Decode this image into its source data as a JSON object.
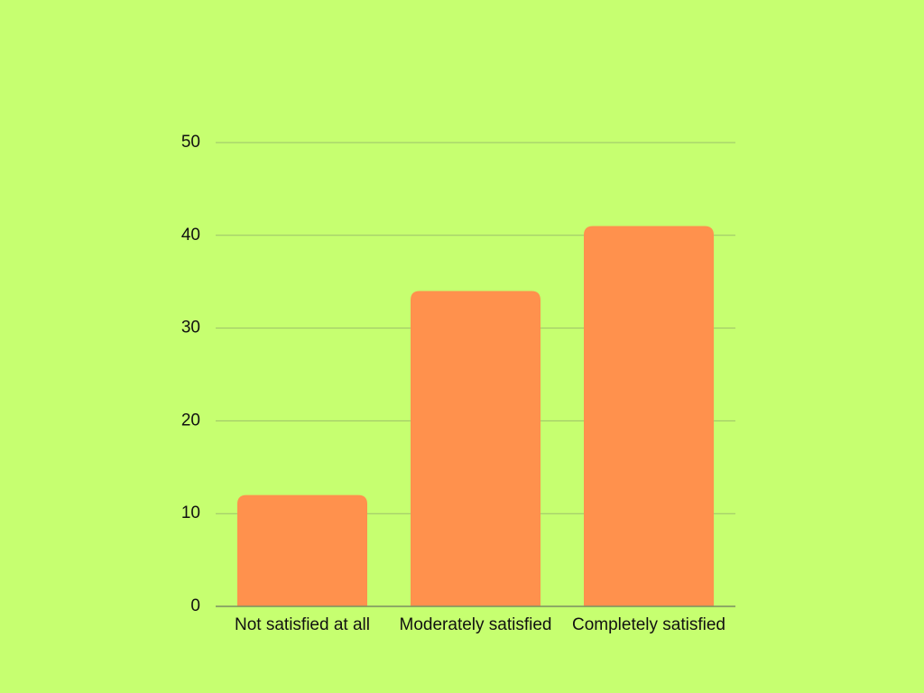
{
  "chart_data": {
    "type": "bar",
    "categories": [
      "Not satisfied at all",
      "Moderately satisfied",
      "Completely satisfied"
    ],
    "values": [
      12,
      34,
      41
    ],
    "color": "#ff914d",
    "ylim": [
      0,
      50
    ],
    "yticks": [
      0,
      10,
      20,
      30,
      40,
      50
    ],
    "grid": true
  }
}
